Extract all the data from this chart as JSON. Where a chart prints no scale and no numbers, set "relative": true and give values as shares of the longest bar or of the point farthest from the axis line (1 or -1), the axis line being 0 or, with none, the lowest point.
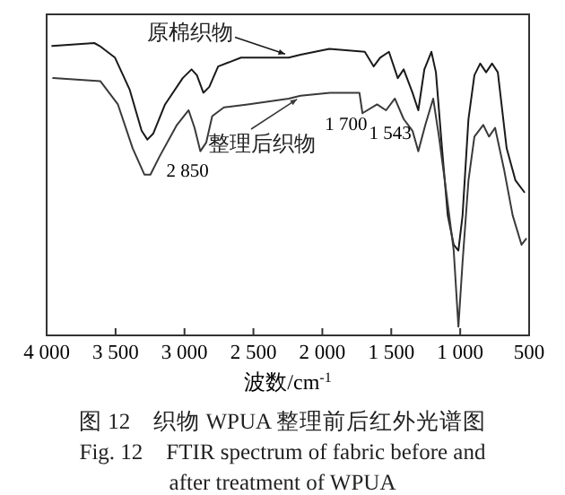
{
  "chart_data": {
    "type": "line",
    "relative": true,
    "title": "图 12　织物 WPUA 整理前后红外光谱图",
    "subtitle": "Fig. 12　FTIR spectrum of fabric before and after treatment of WPUA",
    "xlabel": "波数/cm$^{-1}$",
    "xlim": [
      4000,
      500
    ],
    "xticks": [
      {
        "value": 4000,
        "label": "4 000"
      },
      {
        "value": 3500,
        "label": "3 500"
      },
      {
        "value": 3000,
        "label": "3 000"
      },
      {
        "value": 2500,
        "label": "2 500"
      },
      {
        "value": 2000,
        "label": "2 000"
      },
      {
        "value": 1500,
        "label": "1 500"
      },
      {
        "value": 1000,
        "label": "1 000"
      },
      {
        "value": 500,
        "label": "500"
      }
    ],
    "tick_labels": "x",
    "grid": false,
    "series": [
      {
        "name": "原棉织物",
        "color": "#1a1a1a",
        "x": [
          3960,
          3654,
          3615,
          3504,
          3397,
          3311,
          3269,
          3227,
          3141,
          3013,
          2949,
          2910,
          2863,
          2820,
          2756,
          2590,
          2414,
          2244,
          2158,
          1949,
          1692,
          1628,
          1581,
          1517,
          1453,
          1410,
          1346,
          1304,
          1260,
          1209,
          1176,
          1132,
          1090,
          1047,
          1013,
          983,
          940,
          897,
          855,
          812,
          769,
          727,
          663,
          599,
          535
        ],
        "values": [
          0.99,
          1.0,
          0.99,
          0.95,
          0.84,
          0.7,
          0.67,
          0.69,
          0.79,
          0.88,
          0.91,
          0.89,
          0.83,
          0.85,
          0.92,
          0.95,
          0.95,
          0.95,
          0.96,
          0.98,
          0.97,
          0.92,
          0.95,
          0.97,
          0.88,
          0.91,
          0.83,
          0.77,
          0.91,
          0.97,
          0.9,
          0.64,
          0.41,
          0.31,
          0.29,
          0.41,
          0.74,
          0.89,
          0.93,
          0.9,
          0.93,
          0.9,
          0.64,
          0.53,
          0.49
        ]
      },
      {
        "name": "整理后织物",
        "color": "#3a3a3a",
        "x": [
          3953,
          3611,
          3483,
          3376,
          3291,
          3247,
          3183,
          3055,
          2970,
          2927,
          2885,
          2842,
          2799,
          2714,
          2542,
          2244,
          2158,
          1945,
          1731,
          1709,
          1603,
          1538,
          1474,
          1410,
          1346,
          1304,
          1253,
          1196,
          1154,
          1112,
          1047,
          1013,
          983,
          940,
          897,
          833,
          791,
          747,
          683,
          619,
          555,
          522
        ],
        "values": [
          0.88,
          0.87,
          0.79,
          0.64,
          0.55,
          0.55,
          0.61,
          0.72,
          0.77,
          0.71,
          0.63,
          0.66,
          0.75,
          0.78,
          0.79,
          0.81,
          0.82,
          0.83,
          0.83,
          0.76,
          0.79,
          0.77,
          0.81,
          0.74,
          0.7,
          0.63,
          0.72,
          0.81,
          0.68,
          0.53,
          0.29,
          0.03,
          0.25,
          0.53,
          0.68,
          0.72,
          0.68,
          0.71,
          0.57,
          0.41,
          0.31,
          0.33
        ]
      }
    ],
    "annotations": [
      {
        "text": "2 850",
        "x": 2850,
        "y": 0.64
      },
      {
        "text": "1 700",
        "x": 1700,
        "y": 0.8
      },
      {
        "text": "1 543",
        "x": 1543,
        "y": 0.77
      }
    ]
  }
}
